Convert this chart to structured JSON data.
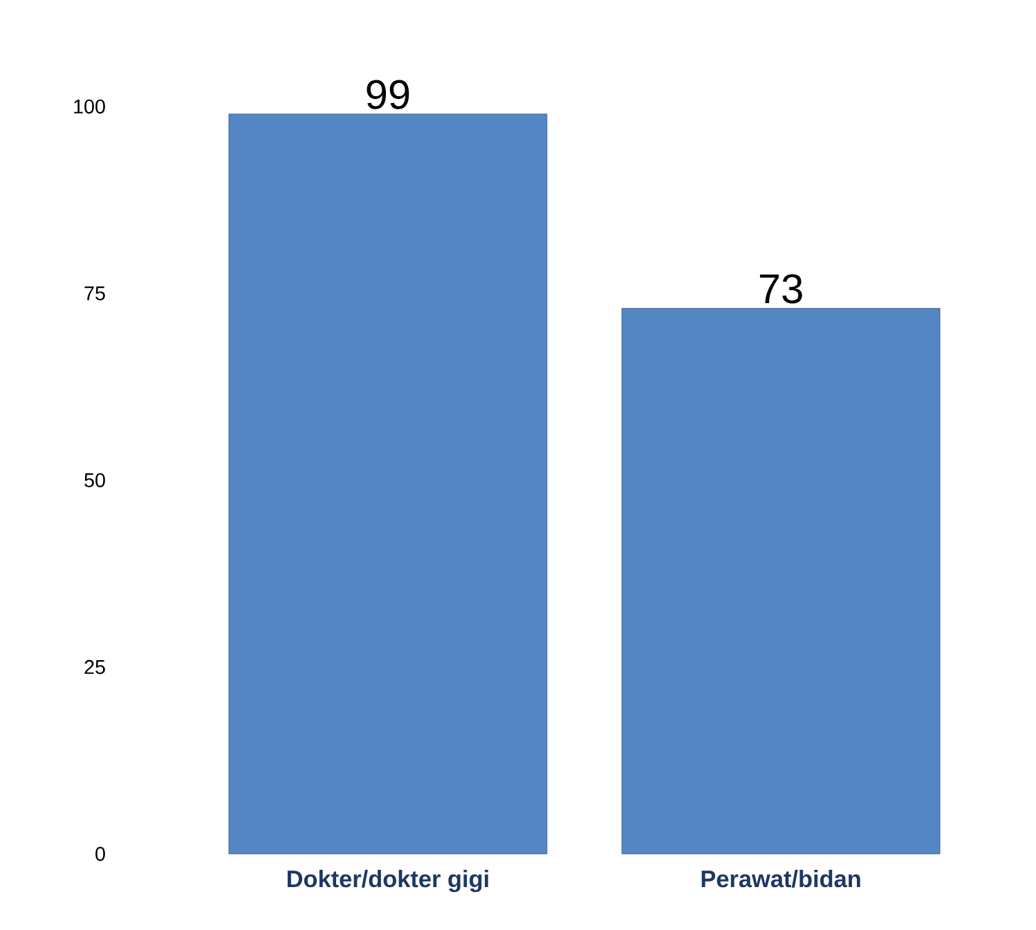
{
  "chart_data": {
    "type": "bar",
    "categories": [
      "Dokter/dokter gigi",
      "Perawat/bidan"
    ],
    "values": [
      99,
      73
    ],
    "color": "#5485c4",
    "ylim": [
      0,
      100
    ],
    "yticks": [
      0,
      25,
      50,
      75,
      100
    ],
    "data_labels": true
  }
}
